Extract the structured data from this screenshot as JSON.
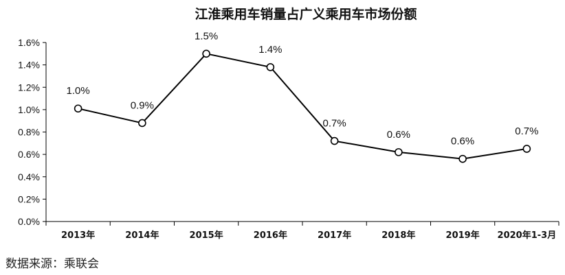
{
  "chart_data": {
    "type": "line",
    "title": "江淮乘用车销量占广义乘用车市场份额",
    "categories": [
      "2013年",
      "2014年",
      "2015年",
      "2016年",
      "2017年",
      "2018年",
      "2019年",
      "2020年1-3月"
    ],
    "values": [
      1.01,
      0.88,
      1.5,
      1.38,
      0.72,
      0.62,
      0.56,
      0.65
    ],
    "data_labels": [
      "1.0%",
      "0.9%",
      "1.5%",
      "1.4%",
      "0.7%",
      "0.6%",
      "0.6%",
      "0.7%"
    ],
    "ylim": [
      0,
      1.6
    ],
    "yticks": [
      "0.0%",
      "0.2%",
      "0.4%",
      "0.6%",
      "0.8%",
      "1.0%",
      "1.2%",
      "1.4%",
      "1.6%"
    ],
    "xlabel": "",
    "ylabel": "",
    "grid": false,
    "line_color": "#000000",
    "marker_fill": "#ffffff"
  },
  "source_text": "数据来源：乘联会"
}
